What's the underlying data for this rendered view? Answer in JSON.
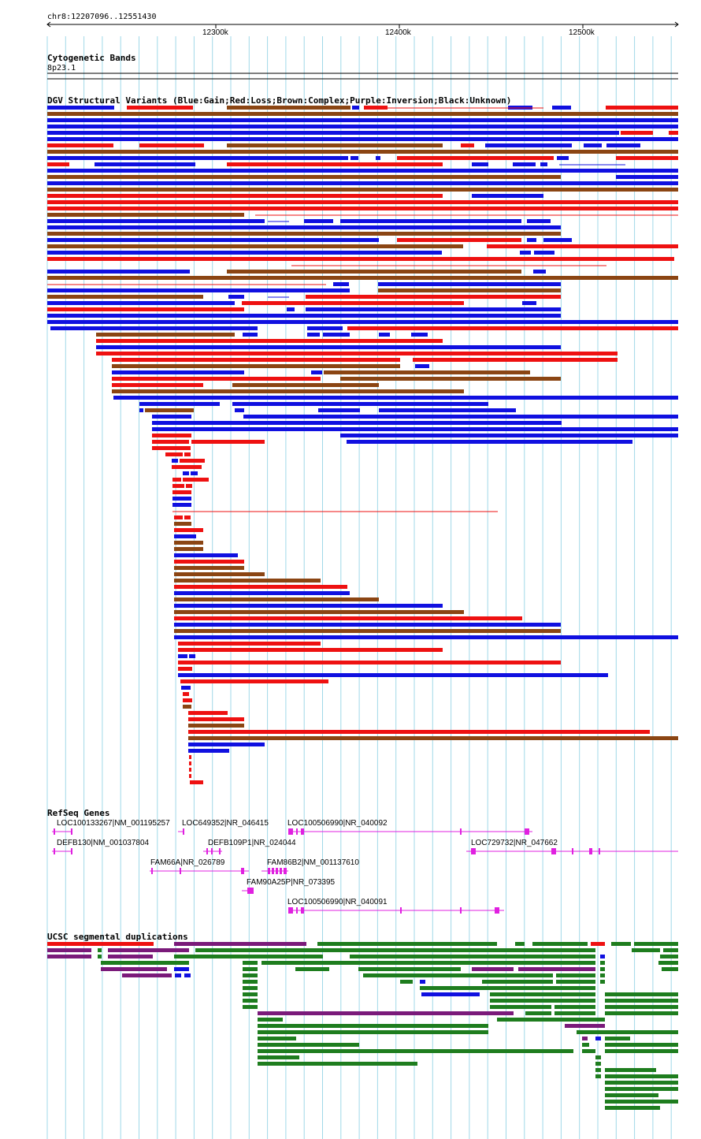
{
  "region": {
    "label": "chr8:12207096..12551430"
  },
  "ruler": {
    "ticks": [
      "12300k",
      "12400k",
      "12500k"
    ]
  },
  "tracks": {
    "cytoband": {
      "title": "Cytogenetic Bands",
      "band": "8p23.1"
    },
    "dgv": {
      "title": "DGV Structural Variants (Blue:Gain;Red:Loss;Brown:Complex;Purple:Inversion;Black:Unknown)"
    },
    "refseq": {
      "title": "RefSeq Genes",
      "genes": [
        "LOC100133267|NM_001195257",
        "LOC649352|NR_046415",
        "LOC100506990|NR_040092",
        "DEFB130|NM_001037804",
        "DEFB109P1|NR_024044",
        "LOC729732|NR_047662",
        "FAM66A|NR_026789",
        "FAM86B2|NM_001137610",
        "FAM90A25P|NR_073395",
        "LOC100506990|NR_040091"
      ]
    },
    "segdup": {
      "title": "UCSC segmental duplications"
    }
  },
  "colors": {
    "gain": "#1010e0",
    "loss": "#ee1111",
    "complex": "#8b4513",
    "gene": "#e020e0",
    "segdup_green": "#1e7d1e",
    "segdup_purple": "#7a1a7a",
    "segdup_red": "#ee1111",
    "segdup_blue": "#1010e0",
    "grid": "#a0d8e8"
  }
}
